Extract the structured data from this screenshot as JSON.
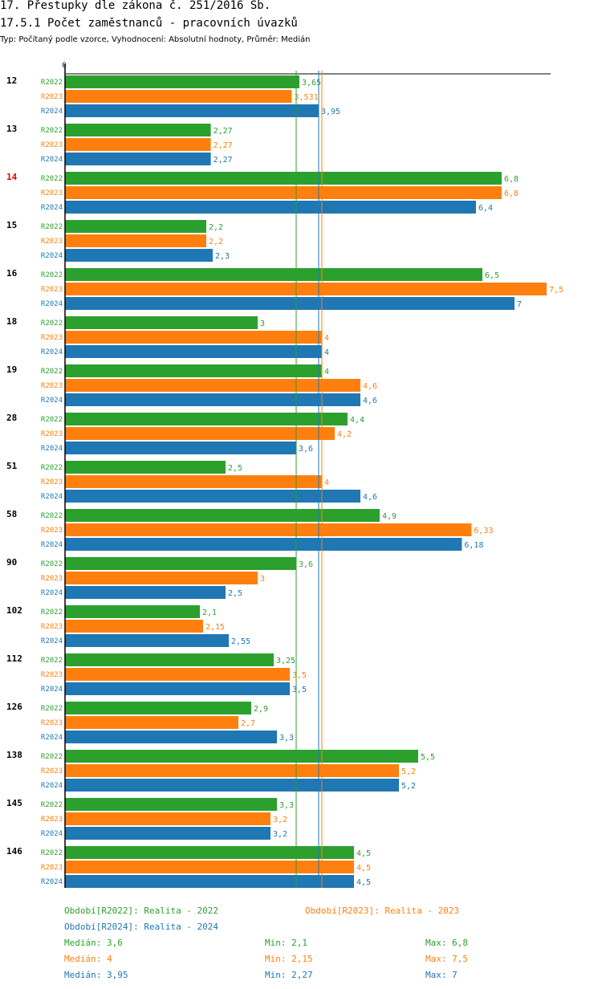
{
  "header": {
    "title": "17. Přestupky dle zákona č. 251/2016 Sb.",
    "subtitle": "17.5.1 Počet zaměstnanců - pracovních úvazků",
    "type_line": "Typ: Počítaný podle vzorce, Vyhodnocení: Absolutní hodnoty, Průměr: Medián"
  },
  "colors": {
    "R2022": "#2ca02c",
    "R2023": "#ff7f0e",
    "R2024": "#1f77b4",
    "highlight": "#dd0000"
  },
  "chart_data": {
    "type": "bar",
    "orientation": "horizontal",
    "title": "17.5.1 Počet zaměstnanců - pracovních úvazků",
    "axis_zero_label": "0",
    "xlim": [
      0,
      8
    ],
    "categories": [
      "12",
      "13",
      "14",
      "15",
      "16",
      "18",
      "19",
      "28",
      "51",
      "58",
      "90",
      "102",
      "112",
      "126",
      "138",
      "145",
      "146"
    ],
    "highlighted_category": "14",
    "series": [
      {
        "name": "R2022",
        "values": [
          3.65,
          2.27,
          6.8,
          2.2,
          6.5,
          3,
          4,
          4.4,
          2.5,
          4.9,
          3.6,
          2.1,
          3.25,
          2.9,
          5.5,
          3.3,
          4.5
        ],
        "labels": [
          "3,65",
          "2,27",
          "6,8",
          "2,2",
          "6,5",
          "3",
          "4",
          "4,4",
          "2,5",
          "4,9",
          "3,6",
          "2,1",
          "3,25",
          "2,9",
          "5,5",
          "3,3",
          "4,5"
        ]
      },
      {
        "name": "R2023",
        "values": [
          3.531,
          2.27,
          6.8,
          2.2,
          7.5,
          4,
          4.6,
          4.2,
          4,
          6.33,
          3,
          2.15,
          3.5,
          2.7,
          5.2,
          3.2,
          4.5
        ],
        "labels": [
          "3,531",
          "2,27",
          "6,8",
          "2,2",
          "7,5",
          "4",
          "4,6",
          "4,2",
          "4",
          "6,33",
          "3",
          "2,15",
          "3,5",
          "2,7",
          "5,2",
          "3,2",
          "4,5"
        ]
      },
      {
        "name": "R2024",
        "values": [
          3.95,
          2.27,
          6.4,
          2.3,
          7,
          4,
          4.6,
          3.6,
          4.6,
          6.18,
          2.5,
          2.55,
          3.5,
          3.3,
          5.2,
          3.2,
          4.5
        ],
        "labels": [
          "3,95",
          "2,27",
          "6,4",
          "2,3",
          "7",
          "4",
          "4,6",
          "3,6",
          "4,6",
          "6,18",
          "2,5",
          "2,55",
          "3,5",
          "3,3",
          "5,2",
          "3,2",
          "4,5"
        ]
      }
    ],
    "median_lines": {
      "R2022": 3.6,
      "R2023": 4,
      "R2024": 3.95
    }
  },
  "legend": {
    "r2022": "Období[R2022]: Realita - 2022",
    "r2023": "Období[R2023]: Realita - 2023",
    "r2024": "Období[R2024]: Realita - 2024"
  },
  "stats": {
    "r2022": {
      "median": "Medián: 3,6",
      "min": "Min: 2,1",
      "max": "Max: 6,8"
    },
    "r2023": {
      "median": "Medián: 4",
      "min": "Min: 2,15",
      "max": "Max: 7,5"
    },
    "r2024": {
      "median": "Medián: 3,95",
      "min": "Min: 2,27",
      "max": "Max: 7"
    }
  }
}
